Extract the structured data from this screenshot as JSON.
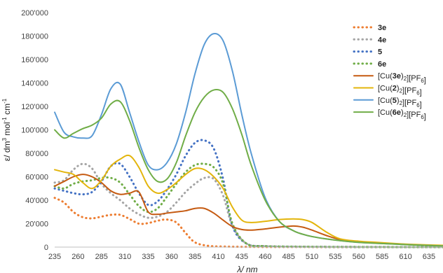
{
  "chart_data": {
    "type": "line",
    "xlabel": "λ/ nm",
    "ylabel_parts": {
      "base": "ε/ dm",
      "sup1": "3",
      "mid": " mol",
      "sup2": "-1",
      "mid2": " cm",
      "sup3": "-1"
    },
    "xlim": [
      235,
      650
    ],
    "ylim": [
      0,
      200000
    ],
    "x_ticks": [
      235,
      260,
      285,
      310,
      335,
      360,
      385,
      410,
      435,
      460,
      485,
      510,
      535,
      560,
      585,
      610,
      635
    ],
    "y_ticks": [
      {
        "v": 0,
        "label": "0"
      },
      {
        "v": 20000,
        "label": "20'000"
      },
      {
        "v": 40000,
        "label": "40'000"
      },
      {
        "v": 60000,
        "label": "60'000"
      },
      {
        "v": 80000,
        "label": "80'000"
      },
      {
        "v": 100000,
        "label": "100'000"
      },
      {
        "v": 120000,
        "label": "120'000"
      },
      {
        "v": 140000,
        "label": "140'000"
      },
      {
        "v": 160000,
        "label": "160'000"
      },
      {
        "v": 180000,
        "label": "180'000"
      },
      {
        "v": 200000,
        "label": "200'000"
      }
    ],
    "grid": false,
    "legend_position": "top-right",
    "series": [
      {
        "name": "3e",
        "legend": [
          {
            "t": "3e",
            "b": true
          }
        ],
        "color": "#ED7D31",
        "dashed": true,
        "x": [
          235,
          245,
          255,
          265,
          275,
          285,
          295,
          305,
          315,
          325,
          335,
          345,
          355,
          365,
          375,
          385,
          400,
          420,
          440,
          460,
          500,
          560,
          620,
          650
        ],
        "y": [
          42000,
          38000,
          30000,
          25500,
          24500,
          26000,
          27500,
          27500,
          24000,
          20000,
          20500,
          22500,
          23500,
          21000,
          12000,
          4000,
          1000,
          400,
          200,
          100,
          50,
          0,
          0,
          0
        ]
      },
      {
        "name": "4e",
        "legend": [
          {
            "t": "4e",
            "b": true
          }
        ],
        "color": "#A5A5A5",
        "dashed": true,
        "x": [
          235,
          245,
          255,
          265,
          275,
          285,
          295,
          305,
          315,
          325,
          335,
          345,
          355,
          365,
          375,
          385,
          395,
          405,
          415,
          425,
          440,
          460,
          500,
          560,
          620,
          650
        ],
        "y": [
          55000,
          57000,
          66000,
          71000,
          67000,
          54000,
          46000,
          40000,
          33000,
          28000,
          25000,
          26000,
          30000,
          38000,
          47000,
          54000,
          59000,
          58000,
          44000,
          18000,
          3000,
          800,
          300,
          100,
          0,
          0
        ]
      },
      {
        "name": "5",
        "legend": [
          {
            "t": "5",
            "b": true
          }
        ],
        "color": "#4472C4",
        "dashed": true,
        "x": [
          235,
          245,
          255,
          265,
          275,
          285,
          295,
          305,
          315,
          325,
          335,
          345,
          355,
          365,
          375,
          385,
          395,
          405,
          415,
          425,
          440,
          460,
          500,
          560,
          620,
          650
        ],
        "y": [
          50000,
          48000,
          46000,
          45000,
          47000,
          56000,
          69000,
          71000,
          60000,
          46000,
          36000,
          39000,
          49000,
          62000,
          78000,
          89000,
          91000,
          84000,
          58000,
          18000,
          3000,
          800,
          300,
          100,
          0,
          0
        ]
      },
      {
        "name": "6e",
        "legend": [
          {
            "t": "6e",
            "b": true
          }
        ],
        "color": "#70AD47",
        "dashed": true,
        "x": [
          235,
          245,
          255,
          265,
          275,
          285,
          295,
          305,
          315,
          325,
          335,
          345,
          355,
          365,
          375,
          385,
          395,
          405,
          415,
          425,
          440,
          460,
          500,
          560,
          620,
          650
        ],
        "y": [
          52000,
          50000,
          54000,
          56000,
          57000,
          59000,
          59000,
          55000,
          45000,
          35000,
          30000,
          33000,
          43000,
          54000,
          64000,
          70000,
          71000,
          68000,
          54000,
          20000,
          3000,
          800,
          300,
          100,
          0,
          0
        ]
      },
      {
        "name": "[Cu(3e)2][PF6]",
        "legend": [
          {
            "t": "[Cu("
          },
          {
            "t": "3e",
            "b": true
          },
          {
            "t": ")"
          },
          {
            "t": "2",
            "sub": true
          },
          {
            "t": "][PF"
          },
          {
            "t": "6",
            "sub": true
          },
          {
            "t": "]"
          }
        ],
        "color": "#C55A11",
        "dashed": false,
        "x": [
          235,
          245,
          255,
          265,
          275,
          285,
          295,
          305,
          315,
          325,
          335,
          345,
          355,
          365,
          375,
          385,
          395,
          405,
          415,
          425,
          435,
          445,
          460,
          475,
          490,
          500,
          510,
          525,
          540,
          560,
          580,
          600,
          620,
          650
        ],
        "y": [
          52000,
          56000,
          60000,
          62000,
          60000,
          55000,
          48000,
          45000,
          46000,
          47000,
          30000,
          28000,
          29000,
          30000,
          31000,
          33000,
          33000,
          29000,
          23000,
          17500,
          15000,
          14500,
          15500,
          17000,
          18000,
          17000,
          14500,
          10000,
          6500,
          4500,
          3500,
          2800,
          2000,
          1000
        ]
      },
      {
        "name": "[Cu(2)2][PF6]",
        "legend": [
          {
            "t": "[Cu("
          },
          {
            "t": "2",
            "b": true
          },
          {
            "t": ")"
          },
          {
            "t": "2",
            "sub": true
          },
          {
            "t": "][PF"
          },
          {
            "t": "6",
            "sub": true
          },
          {
            "t": "]"
          }
        ],
        "color": "#E3B50C",
        "dashed": false,
        "x": [
          235,
          245,
          255,
          265,
          275,
          285,
          295,
          305,
          315,
          325,
          335,
          345,
          355,
          365,
          375,
          385,
          395,
          405,
          415,
          425,
          435,
          445,
          460,
          475,
          490,
          500,
          510,
          525,
          540,
          560,
          580,
          600,
          620,
          650
        ],
        "y": [
          66000,
          64000,
          62000,
          55000,
          50000,
          57000,
          69000,
          75000,
          78000,
          68000,
          52000,
          46000,
          49000,
          55000,
          62000,
          67000,
          66000,
          60000,
          50000,
          34000,
          23000,
          21000,
          22000,
          23500,
          24000,
          23500,
          21000,
          13000,
          7000,
          5000,
          4000,
          3000,
          2200,
          1500
        ]
      },
      {
        "name": "[Cu(5)2][PF6]",
        "legend": [
          {
            "t": "[Cu("
          },
          {
            "t": "5",
            "b": true
          },
          {
            "t": ")"
          },
          {
            "t": "2",
            "sub": true
          },
          {
            "t": "][PF"
          },
          {
            "t": "6",
            "sub": true
          },
          {
            "t": "]"
          }
        ],
        "color": "#5B9BD5",
        "dashed": false,
        "x": [
          235,
          245,
          255,
          265,
          275,
          285,
          295,
          305,
          315,
          325,
          335,
          345,
          355,
          365,
          375,
          385,
          395,
          405,
          415,
          425,
          435,
          445,
          460,
          475,
          490,
          500,
          510,
          525,
          540,
          560,
          580,
          600,
          620,
          650
        ],
        "y": [
          115000,
          98000,
          94000,
          93000,
          95000,
          113000,
          135000,
          139000,
          115000,
          90000,
          70000,
          66000,
          72000,
          88000,
          115000,
          148000,
          173000,
          182000,
          176000,
          150000,
          113000,
          80000,
          42000,
          22000,
          14000,
          11000,
          9000,
          7000,
          5500,
          4000,
          3200,
          2500,
          1800,
          1000
        ]
      },
      {
        "name": "[Cu(6e)2][PF6]",
        "legend": [
          {
            "t": "[Cu("
          },
          {
            "t": "6e",
            "b": true
          },
          {
            "t": ")"
          },
          {
            "t": "2",
            "sub": true
          },
          {
            "t": "][PF"
          },
          {
            "t": "6",
            "sub": true
          },
          {
            "t": "]"
          }
        ],
        "color": "#70AD47",
        "dashed": false,
        "x": [
          235,
          245,
          255,
          265,
          275,
          285,
          295,
          305,
          315,
          325,
          335,
          345,
          355,
          365,
          375,
          385,
          395,
          405,
          415,
          425,
          435,
          445,
          460,
          475,
          490,
          500,
          510,
          525,
          540,
          560,
          580,
          600,
          620,
          650
        ],
        "y": [
          100000,
          93000,
          97000,
          101000,
          104000,
          110000,
          122000,
          124000,
          108000,
          85000,
          66000,
          56000,
          58000,
          72000,
          95000,
          115000,
          128000,
          134000,
          132000,
          118000,
          96000,
          70000,
          40000,
          22000,
          14000,
          11000,
          9000,
          7000,
          5500,
          4000,
          3200,
          2500,
          1800,
          1000
        ]
      }
    ]
  }
}
